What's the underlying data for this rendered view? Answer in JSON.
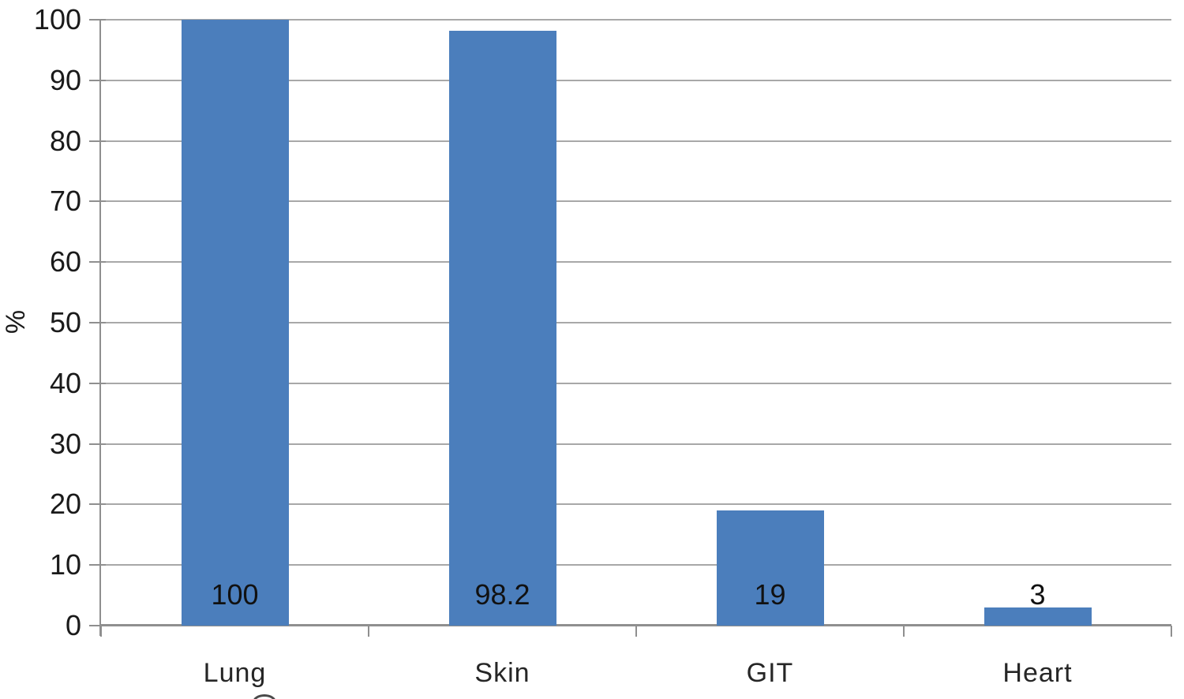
{
  "chart_data": {
    "type": "bar",
    "title": "",
    "xlabel": "",
    "ylabel": "%",
    "categories": [
      "Lung",
      "Skin",
      "GIT",
      "Heart"
    ],
    "values": [
      100,
      98.2,
      19,
      3
    ],
    "data_labels": [
      "100",
      "98.2",
      "19",
      "3"
    ],
    "ylim": [
      0,
      100
    ],
    "yticks": [
      0,
      10,
      20,
      30,
      40,
      50,
      60,
      70,
      80,
      90,
      100
    ],
    "grid": "horizontal-only",
    "legend": "none",
    "colors": {
      "bar": "#4b7ebc",
      "gridline": "#a8a8a8",
      "axis": "#8f8f8f",
      "tick": "#8f8f8f",
      "text": "#1a1a1a",
      "background": "#ffffff"
    }
  }
}
